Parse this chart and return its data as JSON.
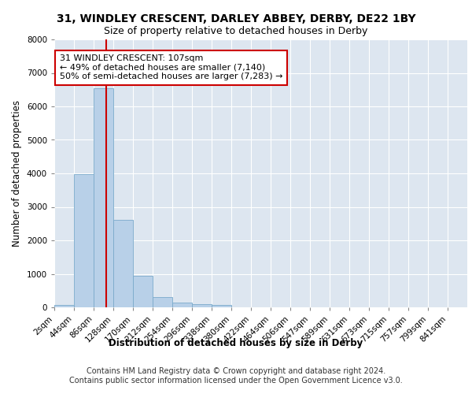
{
  "title": "31, WINDLEY CRESCENT, DARLEY ABBEY, DERBY, DE22 1BY",
  "subtitle": "Size of property relative to detached houses in Derby",
  "xlabel": "Distribution of detached houses by size in Derby",
  "ylabel": "Number of detached properties",
  "bar_values": [
    75,
    3980,
    6550,
    2620,
    950,
    310,
    130,
    105,
    75,
    0,
    0,
    0,
    0,
    0,
    0,
    0,
    0,
    0,
    0,
    0,
    0
  ],
  "bar_labels": [
    "2sqm",
    "44sqm",
    "86sqm",
    "128sqm",
    "170sqm",
    "212sqm",
    "254sqm",
    "296sqm",
    "338sqm",
    "380sqm",
    "422sqm",
    "464sqm",
    "506sqm",
    "547sqm",
    "589sqm",
    "631sqm",
    "673sqm",
    "715sqm",
    "757sqm",
    "799sqm",
    "841sqm"
  ],
  "bar_color": "#b8d0e8",
  "bar_edge_color": "#7aaacb",
  "background_color": "#dde6f0",
  "grid_color": "#ffffff",
  "vline_color": "#cc0000",
  "vline_x": 2.65,
  "annotation_text": "31 WINDLEY CRESCENT: 107sqm\n← 49% of detached houses are smaller (7,140)\n50% of semi-detached houses are larger (7,283) →",
  "annotation_box_color": "#ffffff",
  "annotation_box_edge": "#cc0000",
  "ylim": [
    0,
    8000
  ],
  "yticks": [
    0,
    1000,
    2000,
    3000,
    4000,
    5000,
    6000,
    7000,
    8000
  ],
  "footer_line1": "Contains HM Land Registry data © Crown copyright and database right 2024.",
  "footer_line2": "Contains public sector information licensed under the Open Government Licence v3.0.",
  "title_fontsize": 10,
  "subtitle_fontsize": 9,
  "axis_label_fontsize": 8.5,
  "tick_fontsize": 7.5,
  "annotation_fontsize": 8,
  "footer_fontsize": 7
}
